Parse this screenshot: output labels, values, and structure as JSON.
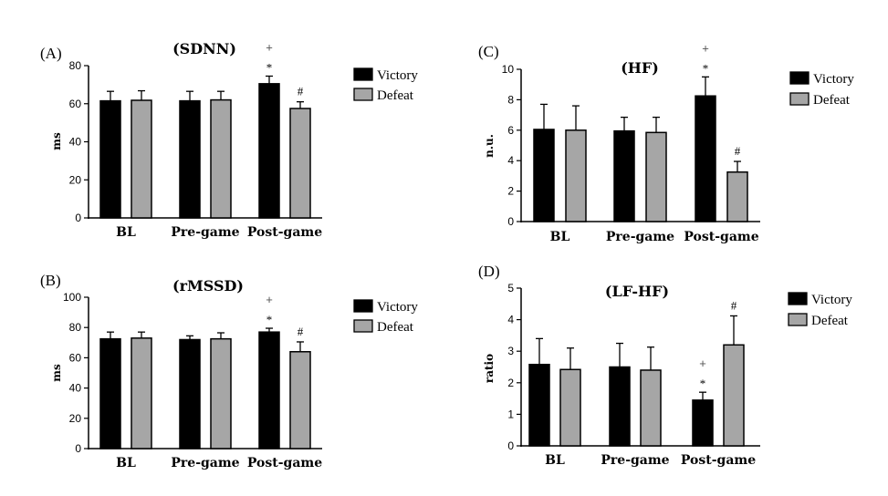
{
  "chart_data": [
    {
      "id": "A",
      "panel": "(A)",
      "type": "bar",
      "title": "(SDNN)",
      "ylabel": "ms",
      "ylim": [
        0,
        80
      ],
      "yticks": [
        0,
        20,
        40,
        60,
        80
      ],
      "categories": [
        "BL",
        "Pre-game",
        "Post-game"
      ],
      "series": [
        {
          "name": "Victory",
          "color": "#000000",
          "values": [
            61.5,
            61.5,
            70.5
          ],
          "errors": [
            5,
            5,
            4
          ]
        },
        {
          "name": "Defeat",
          "color": "#a6a6a6",
          "values": [
            61.8,
            62,
            57.5
          ],
          "errors": [
            5,
            4.5,
            3.5
          ]
        }
      ],
      "annotations": [
        {
          "category": 2,
          "series": 0,
          "marks": [
            "+",
            "*"
          ]
        },
        {
          "category": 2,
          "series": 1,
          "marks": [
            "#"
          ]
        }
      ],
      "legend": "right"
    },
    {
      "id": "B",
      "panel": "(B)",
      "type": "bar",
      "title": "(rMSSD)",
      "ylabel": "ms",
      "ylim": [
        0,
        100
      ],
      "yticks": [
        0,
        20,
        40,
        60,
        80,
        100
      ],
      "categories": [
        "BL",
        "Pre-game",
        "Post-game"
      ],
      "series": [
        {
          "name": "Victory",
          "color": "#000000",
          "values": [
            72.5,
            72,
            77
          ],
          "errors": [
            4.5,
            2.5,
            2.5
          ]
        },
        {
          "name": "Defeat",
          "color": "#a6a6a6",
          "values": [
            73,
            72.5,
            64
          ],
          "errors": [
            4,
            4,
            6.5
          ]
        }
      ],
      "annotations": [
        {
          "category": 2,
          "series": 0,
          "marks": [
            "+",
            "*"
          ]
        },
        {
          "category": 2,
          "series": 1,
          "marks": [
            "#"
          ]
        }
      ],
      "legend": "right"
    },
    {
      "id": "C",
      "panel": "(C)",
      "type": "bar",
      "title": "(HF)",
      "ylabel": "n.u.",
      "ylim": [
        0,
        10
      ],
      "yticks": [
        0,
        2,
        4,
        6,
        8,
        10
      ],
      "categories": [
        "BL",
        "Pre-game",
        "Post-game"
      ],
      "series": [
        {
          "name": "Victory",
          "color": "#000000",
          "values": [
            6.05,
            5.95,
            8.25
          ],
          "errors": [
            1.65,
            0.9,
            1.25
          ]
        },
        {
          "name": "Defeat",
          "color": "#a6a6a6",
          "values": [
            6.0,
            5.85,
            3.25
          ],
          "errors": [
            1.6,
            1.0,
            0.7
          ]
        }
      ],
      "annotations": [
        {
          "category": 2,
          "series": 0,
          "marks": [
            "+",
            "*"
          ]
        },
        {
          "category": 2,
          "series": 1,
          "marks": [
            "#"
          ]
        }
      ],
      "legend": "right"
    },
    {
      "id": "D",
      "panel": "(D)",
      "type": "bar",
      "title": "(LF-HF)",
      "ylabel": "ratio",
      "ylim": [
        0,
        5
      ],
      "yticks": [
        0,
        1,
        2,
        3,
        4,
        5
      ],
      "categories": [
        "BL",
        "Pre-game",
        "Post-game"
      ],
      "series": [
        {
          "name": "Victory",
          "color": "#000000",
          "values": [
            2.58,
            2.5,
            1.45
          ],
          "errors": [
            0.82,
            0.75,
            0.25
          ]
        },
        {
          "name": "Defeat",
          "color": "#a6a6a6",
          "values": [
            2.42,
            2.4,
            3.2
          ],
          "errors": [
            0.68,
            0.73,
            0.92
          ]
        }
      ],
      "annotations": [
        {
          "category": 2,
          "series": 0,
          "marks": [
            "+",
            "*"
          ]
        },
        {
          "category": 1.9,
          "series": 1,
          "marks": [
            "#"
          ]
        }
      ],
      "legend": "right"
    }
  ]
}
